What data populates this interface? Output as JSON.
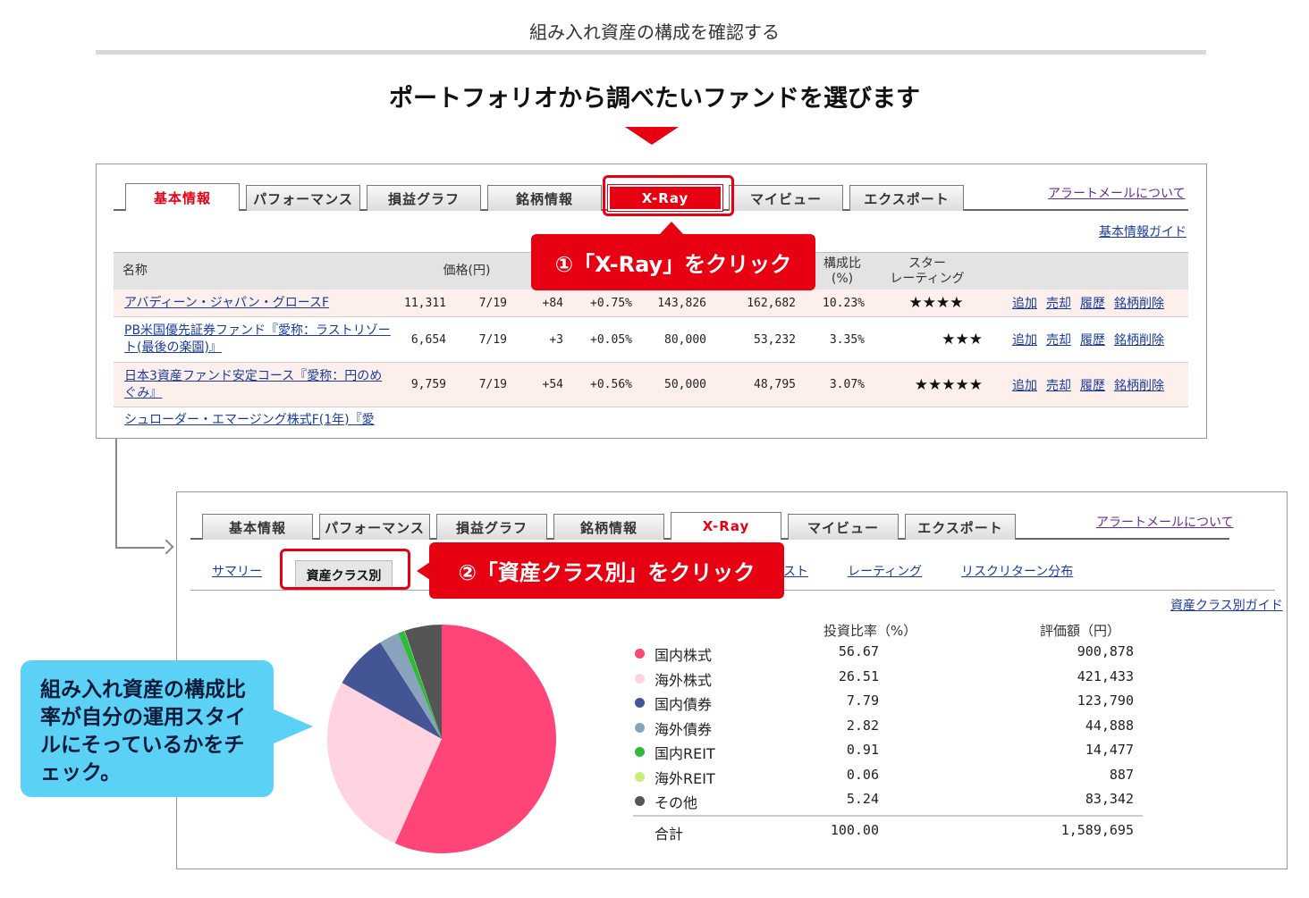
{
  "page": {
    "header": "組み入れ資産の構成を確認する",
    "instruction": "ポートフォリオから調べたいファンドを選びます"
  },
  "panel1": {
    "tabs": [
      {
        "label": "基本情報",
        "active": true
      },
      {
        "label": "パフォーマンス"
      },
      {
        "label": "損益グラフ"
      },
      {
        "label": "銘柄情報"
      },
      {
        "label": "X-Ray",
        "highlighted": true
      },
      {
        "label": "マイビュー"
      },
      {
        "label": "エクスポート"
      }
    ],
    "alert_link": "アラートメールについて",
    "guide_link": "基本情報ガイド",
    "headers": {
      "name": "名称",
      "price": "価格(円)",
      "ratio": "構成比\n(%)",
      "star": "スター\nレーティング"
    },
    "rows": [
      {
        "name": "アバディーン・ジャパン・グロースF",
        "price": "11,311",
        "date": "7/19",
        "change": "+84",
        "change_pct": "+0.75%",
        "c1": "143,826",
        "c2": "162,682",
        "ratio": "10.23%",
        "stars": "★★★★"
      },
      {
        "name": "PB米国優先証券ファンド『愛称：ラストリゾート(最後の楽園)』",
        "price": "6,654",
        "date": "7/19",
        "change": "+3",
        "change_pct": "+0.05%",
        "c1": "80,000",
        "c2": "53,232",
        "ratio": "3.35%",
        "stars": "★★★"
      },
      {
        "name": "日本3資産ファンド安定コース『愛称：円のめぐみ』",
        "price": "9,759",
        "date": "7/19",
        "change": "+54",
        "change_pct": "+0.56%",
        "c1": "50,000",
        "c2": "48,795",
        "ratio": "3.07%",
        "stars": "★★★★★"
      },
      {
        "name": "シュローダー・エマージング株式F(1年)『愛"
      }
    ],
    "actions": [
      "追加",
      "売却",
      "履歴",
      "銘柄削除"
    ]
  },
  "callouts": {
    "step1": "①「X-Ray」をクリック",
    "step2": "②「資産クラス別」をクリック"
  },
  "panel2": {
    "tabs": [
      {
        "label": "基本情報"
      },
      {
        "label": "パフォーマンス"
      },
      {
        "label": "損益グラフ"
      },
      {
        "label": "銘柄情報"
      },
      {
        "label": "X-Ray",
        "active": true
      },
      {
        "label": "マイビュー"
      },
      {
        "label": "エクスポート"
      }
    ],
    "alert_link": "アラートメールについて",
    "subtabs": {
      "summary": "サマリー",
      "asset_class": "資産クラス別",
      "list_partial": "スト",
      "rating": "レーティング",
      "risk_return": "リスクリターン分布"
    },
    "guide_link": "資産クラス別ガイド"
  },
  "note": "組み入れ資産の構成比率が自分の運用スタイルにそっているかをチェック。",
  "allocation": {
    "header_pct": "投資比率（%）",
    "header_amt": "評価額（円）",
    "total_label": "合計",
    "total_pct": "100.00",
    "total_amt": "1,589,695"
  },
  "chart_data": {
    "type": "pie",
    "categories": [
      "国内株式",
      "海外株式",
      "国内債券",
      "海外債券",
      "国内REIT",
      "海外REIT",
      "その他"
    ],
    "values": [
      56.67,
      26.51,
      7.79,
      2.82,
      0.91,
      0.06,
      5.24
    ],
    "amounts": [
      "900,878",
      "421,433",
      "123,790",
      "44,888",
      "14,477",
      "887",
      "83,342"
    ],
    "value_labels": [
      "56.67",
      "26.51",
      "7.79",
      "2.82",
      "0.91",
      "0.06",
      "5.24"
    ],
    "colors": [
      "#ff4478",
      "#ffd3e0",
      "#445596",
      "#8aa3bd",
      "#2fbb3a",
      "#c7f07a",
      "#555555"
    ]
  }
}
